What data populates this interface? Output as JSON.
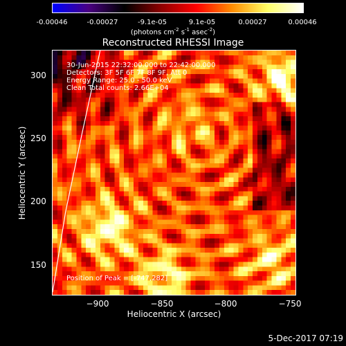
{
  "colorbar": {
    "tick_labels": [
      "-0.00046",
      "-0.00027",
      "-9.1e-05",
      "9.1e-05",
      "0.00027",
      "0.00046"
    ],
    "tick_values": [
      -0.00046,
      -0.00027,
      -9.1e-05,
      9.1e-05,
      0.00027,
      0.00046
    ],
    "range": [
      -0.00046,
      0.00046
    ],
    "unit_prefix": "(photons cm",
    "unit_exp1": "-2",
    "unit_mid1": " s",
    "unit_exp2": "-1",
    "unit_mid2": " asec",
    "unit_exp3": "-2",
    "unit_suffix": ")",
    "colormap": [
      "#0000ff",
      "#4b0082",
      "#000000",
      "#8b0000",
      "#ff0000",
      "#ff8c00",
      "#ffff66",
      "#ffffff"
    ]
  },
  "chart_data": {
    "type": "heatmap",
    "title": "Reconstructed RHESSI Image",
    "xlabel": "Heliocentric X (arcsec)",
    "ylabel": "Heliocentric Y (arcsec)",
    "xlim": [
      -935,
      -745
    ],
    "ylim": [
      137,
      322
    ],
    "x_ticks": [
      -900,
      -850,
      -800,
      -750
    ],
    "x_tick_labels": [
      "−900",
      "−850",
      "−800",
      "−750"
    ],
    "y_ticks": [
      150,
      200,
      250,
      300
    ],
    "y_tick_labels": [
      "150",
      "200",
      "250",
      "300"
    ],
    "info_lines": [
      "30-Jun-2015 22:32:00.000 to 22:42:00.000",
      "Detectors: 3F 5F 6F 7F 8F 9F, Att 0",
      "Energy Range: 25.0 - 50.0 keV",
      "Clean    Total counts: 2.66E+04"
    ],
    "peak_label": "Position of Peak = [-747,282]",
    "peak_position": [
      -747,
      282
    ],
    "limb_curve": [
      [
        -935,
        140
      ],
      [
        -925,
        200
      ],
      [
        -912,
        260
      ],
      [
        -898,
        322
      ]
    ],
    "limb_color": "#ffffff"
  },
  "footer": {
    "date": "5-Dec-2017 07:19"
  }
}
